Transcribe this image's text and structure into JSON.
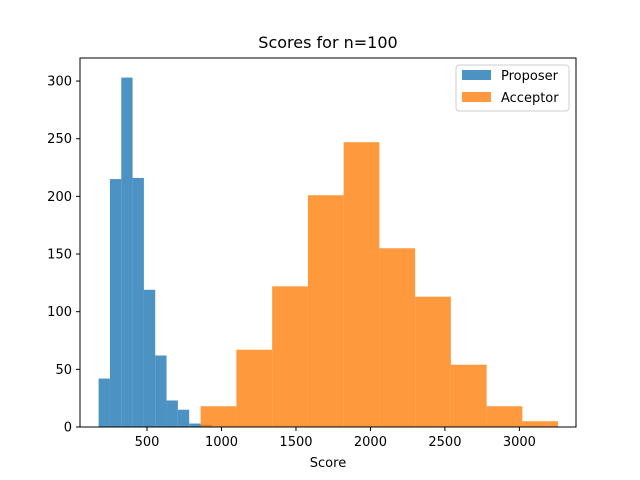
{
  "chart_data": {
    "type": "histogram",
    "title": "Scores for n=100",
    "xlabel": "Score",
    "ylabel": "",
    "xlim": [
      50,
      3380
    ],
    "ylim": [
      0,
      320
    ],
    "xticks": [
      500,
      1000,
      1500,
      2000,
      2500,
      3000
    ],
    "yticks": [
      0,
      50,
      100,
      150,
      200,
      250,
      300
    ],
    "grid": false,
    "legend_position": "top-right",
    "series": [
      {
        "name": "Proposer",
        "color": "#1f77b4",
        "alpha": 0.8,
        "bin_edges": [
          175,
          251,
          327,
          403,
          479,
          555,
          631,
          707,
          783,
          859,
          935
        ],
        "counts": [
          42,
          215,
          303,
          216,
          119,
          62,
          23,
          15,
          3,
          2
        ]
      },
      {
        "name": "Acceptor",
        "color": "#ff7f0e",
        "alpha": 0.8,
        "bin_edges": [
          860,
          1100,
          1340,
          1580,
          1820,
          2060,
          2300,
          2540,
          2780,
          3020,
          3260
        ],
        "counts": [
          18,
          67,
          122,
          201,
          247,
          155,
          113,
          54,
          18,
          5
        ]
      }
    ]
  }
}
